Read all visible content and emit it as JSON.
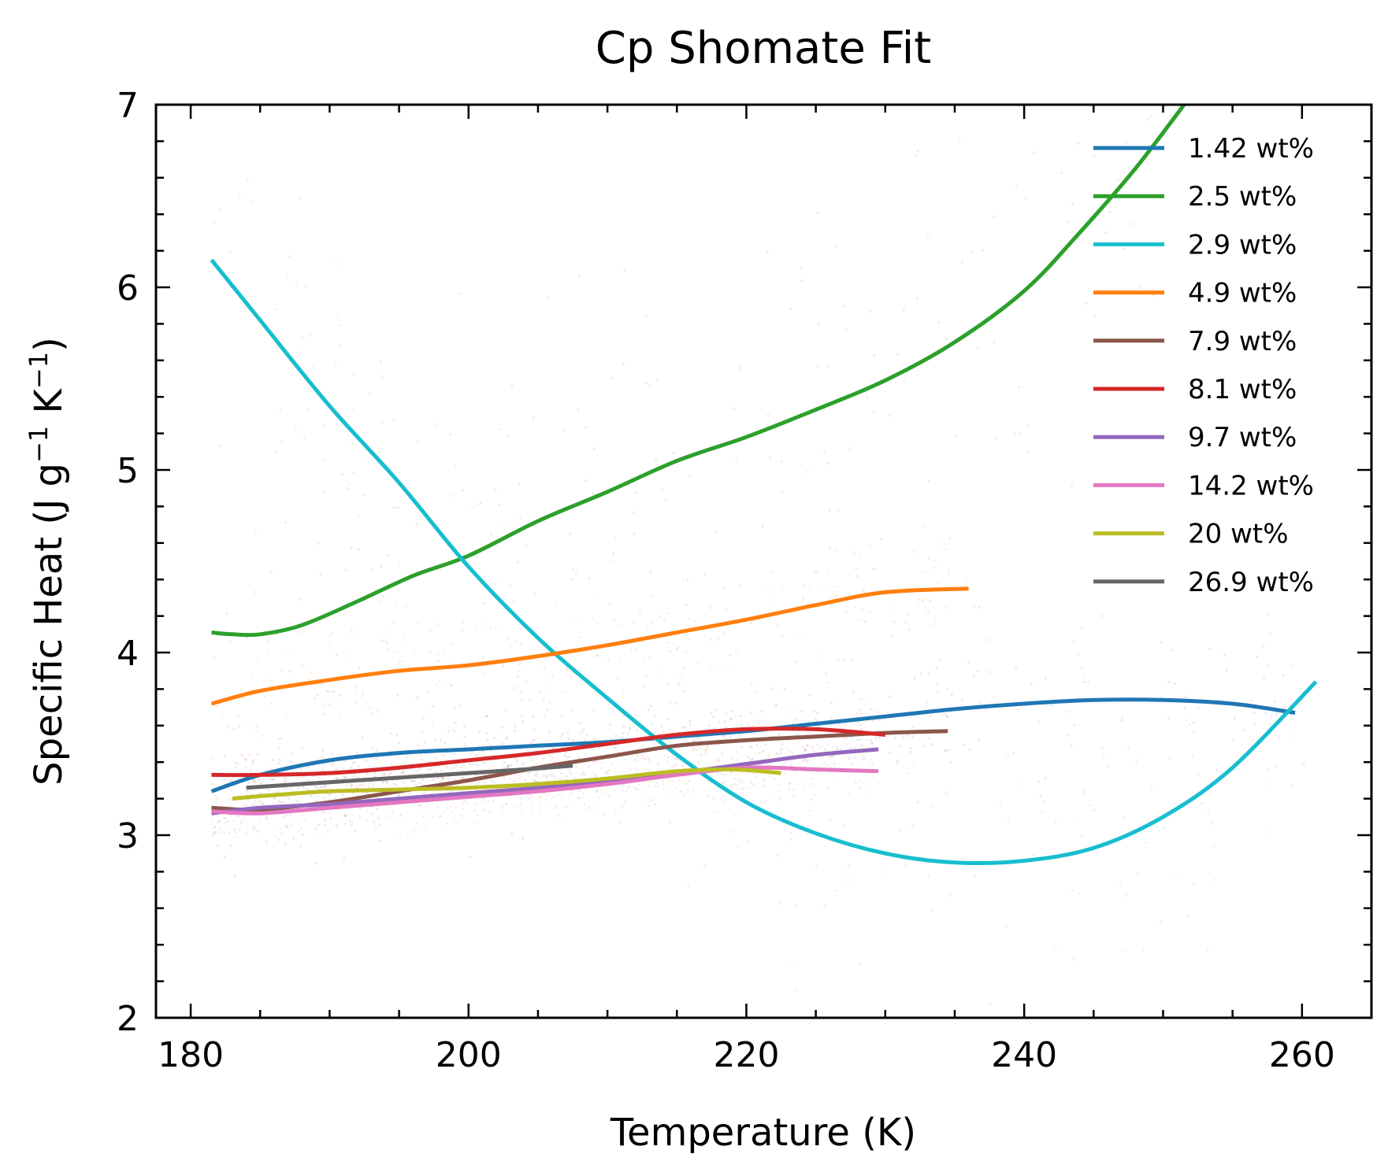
{
  "chart_data": {
    "type": "line",
    "title": "Cp Shomate Fit",
    "xlabel": "Temperature (K)",
    "ylabel": {
      "parts": [
        "Specific Heat (J g",
        "−1",
        " K",
        "−1",
        ")"
      ]
    },
    "xlim": [
      177.5,
      265
    ],
    "ylim": [
      2,
      7
    ],
    "xticks": [
      180,
      200,
      220,
      240,
      260
    ],
    "yticks": [
      2,
      3,
      4,
      5,
      6,
      7
    ],
    "grid": false,
    "legend_position": "top-right",
    "series": [
      {
        "name": "1.42 wt%",
        "color": "#1f77b4",
        "x": [
          181.5,
          185,
          190,
          195,
          200,
          205,
          210,
          215,
          220,
          225,
          230,
          235,
          240,
          245,
          250,
          255,
          259.5
        ],
        "y": [
          3.24,
          3.33,
          3.41,
          3.45,
          3.47,
          3.49,
          3.51,
          3.54,
          3.57,
          3.61,
          3.65,
          3.69,
          3.72,
          3.74,
          3.74,
          3.72,
          3.67
        ]
      },
      {
        "name": "2.5 wt%",
        "color": "#2ca02c",
        "x": [
          181.5,
          183,
          185,
          188,
          192,
          196,
          200,
          205,
          210,
          215,
          220,
          225,
          230,
          235,
          240,
          244,
          248,
          252
        ],
        "y": [
          4.11,
          4.1,
          4.1,
          4.15,
          4.28,
          4.42,
          4.53,
          4.72,
          4.88,
          5.05,
          5.18,
          5.33,
          5.49,
          5.7,
          5.98,
          6.3,
          6.65,
          7.05
        ]
      },
      {
        "name": "2.9 wt%",
        "color": "#17becf",
        "x": [
          181.5,
          185,
          190,
          195,
          200,
          205,
          210,
          215,
          220,
          225,
          230,
          235,
          240,
          245,
          250,
          255,
          261
        ],
        "y": [
          6.15,
          5.82,
          5.35,
          4.93,
          4.47,
          4.08,
          3.75,
          3.44,
          3.18,
          3.01,
          2.9,
          2.85,
          2.86,
          2.93,
          3.1,
          3.37,
          3.84
        ]
      },
      {
        "name": "4.9 wt%",
        "color": "#ff7f0e",
        "x": [
          181.5,
          185,
          190,
          195,
          200,
          205,
          210,
          215,
          220,
          225,
          230,
          236
        ],
        "y": [
          3.72,
          3.79,
          3.85,
          3.9,
          3.93,
          3.98,
          4.04,
          4.11,
          4.18,
          4.26,
          4.33,
          4.35
        ]
      },
      {
        "name": "7.9 wt%",
        "color": "#8c564b",
        "x": [
          181.5,
          185,
          190,
          195,
          200,
          205,
          210,
          215,
          220,
          225,
          230,
          234.5
        ],
        "y": [
          3.15,
          3.14,
          3.18,
          3.24,
          3.3,
          3.37,
          3.43,
          3.49,
          3.52,
          3.54,
          3.56,
          3.57
        ]
      },
      {
        "name": "8.1 wt%",
        "color": "#d62728",
        "x": [
          181.5,
          185,
          190,
          195,
          200,
          205,
          210,
          215,
          220,
          225,
          230
        ],
        "y": [
          3.33,
          3.33,
          3.34,
          3.37,
          3.41,
          3.45,
          3.5,
          3.55,
          3.58,
          3.58,
          3.55
        ]
      },
      {
        "name": "9.7 wt%",
        "color": "#9467bd",
        "x": [
          181.5,
          185,
          190,
          195,
          200,
          205,
          210,
          215,
          220,
          225,
          229.5
        ],
        "y": [
          3.12,
          3.15,
          3.17,
          3.2,
          3.23,
          3.26,
          3.3,
          3.34,
          3.39,
          3.44,
          3.47
        ]
      },
      {
        "name": "14.2 wt%",
        "color": "#e377c2",
        "x": [
          181.5,
          185,
          190,
          195,
          200,
          205,
          210,
          215,
          220,
          225,
          229.5
        ],
        "y": [
          3.13,
          3.12,
          3.15,
          3.18,
          3.21,
          3.24,
          3.28,
          3.33,
          3.37,
          3.36,
          3.35
        ]
      },
      {
        "name": "20 wt%",
        "color": "#bcbd22",
        "x": [
          183,
          186,
          190,
          195,
          200,
          205,
          210,
          215,
          219,
          222.5
        ],
        "y": [
          3.2,
          3.22,
          3.24,
          3.25,
          3.26,
          3.28,
          3.31,
          3.35,
          3.36,
          3.34
        ]
      },
      {
        "name": "26.9 wt%",
        "color": "#666666",
        "x": [
          184,
          188,
          192,
          196,
          200,
          204,
          207.5
        ],
        "y": [
          3.26,
          3.28,
          3.3,
          3.32,
          3.34,
          3.36,
          3.38
        ]
      }
    ]
  }
}
